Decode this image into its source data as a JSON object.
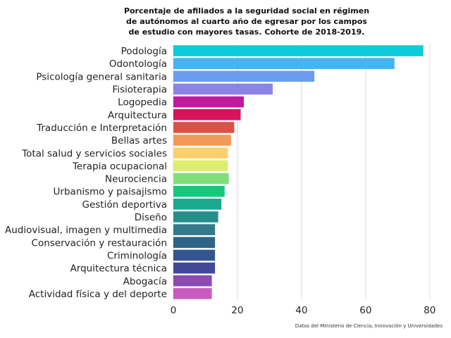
{
  "chart_data": {
    "type": "bar",
    "orientation": "horizontal",
    "title_lines": [
      "Porcentaje de afiliados a la seguridad social en régimen",
      "de autónomos al cuarto año de egresar por los campos",
      "de estudio con mayores tasas. Cohorte de 2018-2019."
    ],
    "categories": [
      "Podología",
      "Odontología",
      "Psicología general sanitaria",
      "Fisioterapia",
      "Logopedia",
      "Arquitectura",
      "Traducción e Interpretación",
      "Bellas artes",
      "Total salud y servicios sociales",
      "Terapia ocupacional",
      "Neurociencia",
      "Urbanismo y paisajismo",
      "Gestión deportiva",
      "Diseño",
      "Audiovisual, imagen y multimedia",
      "Conservación y restauración",
      "Criminología",
      "Arquitectura técnica",
      "Abogacía",
      "Actividad física y del deporte"
    ],
    "values": [
      78,
      69,
      44,
      31,
      22,
      21,
      19,
      18,
      17,
      17,
      17.3,
      16,
      15,
      14,
      13,
      13,
      13,
      13,
      12,
      12
    ],
    "colors": [
      "#0ecbdc",
      "#44b5f0",
      "#6b9cf0",
      "#8b84e6",
      "#be1b9c",
      "#d6145e",
      "#dd5246",
      "#f2995a",
      "#fdd06e",
      "#ddee6e",
      "#7fe07a",
      "#12c97d",
      "#1aa890",
      "#268e8a",
      "#357a8c",
      "#2e6587",
      "#345690",
      "#41489a",
      "#8c4ab2",
      "#c85cc0"
    ],
    "xticks": [
      0,
      20,
      40,
      60,
      80
    ],
    "xlim": [
      0,
      84
    ],
    "grid": true,
    "xlabel": "",
    "ylabel": "",
    "source": "Datos del Ministerio de Ciencia, Innovación y Universidades"
  }
}
